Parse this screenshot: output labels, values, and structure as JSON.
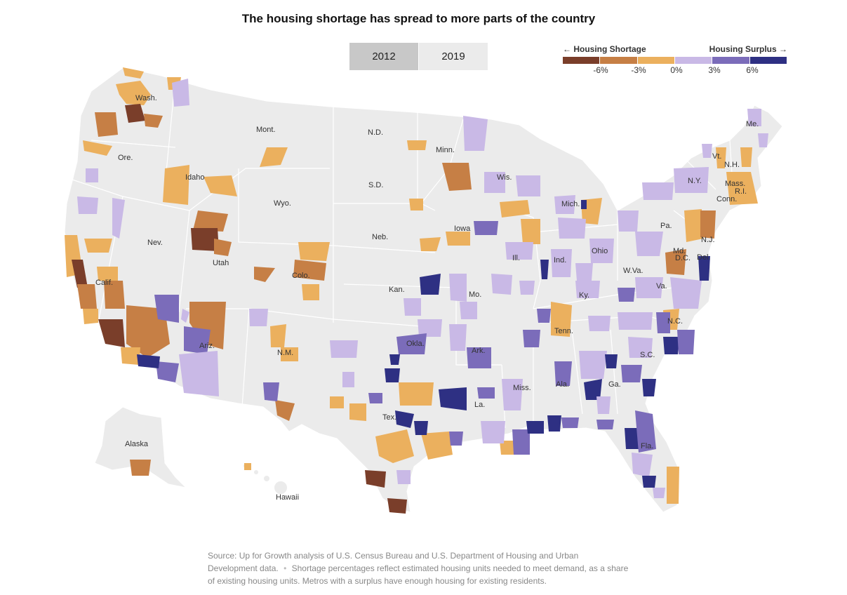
{
  "title": "The housing shortage has spread to more parts of the country",
  "toggle": {
    "options": [
      "2012",
      "2019"
    ],
    "selected": "2012"
  },
  "legend": {
    "left_label": "← Housing Shortage",
    "right_label": "Housing Surplus →",
    "ticks": [
      "-6%",
      "-3%",
      "0%",
      "3%",
      "6%"
    ],
    "colors": [
      "#7a3e2a",
      "#c67f45",
      "#ebb05e",
      "#c9b9e6",
      "#7b6cba",
      "#2e3083"
    ]
  },
  "map": {
    "base_color": "#ebebeb",
    "state_labels": [
      "Wash.",
      "Ore.",
      "Calif.",
      "Nev.",
      "Idaho",
      "Mont.",
      "Wyo.",
      "Utah",
      "Ariz.",
      "Colo.",
      "N.M.",
      "N.D.",
      "S.D.",
      "Neb.",
      "Kan.",
      "Okla.",
      "Tex.",
      "Minn.",
      "Iowa",
      "Mo.",
      "Ark.",
      "La.",
      "Wis.",
      "Ill.",
      "Mich.",
      "Ind.",
      "Ohio",
      "Ky.",
      "Tenn.",
      "Miss.",
      "Ala.",
      "Ga.",
      "Fla.",
      "S.C.",
      "N.C.",
      "Va.",
      "W.Va.",
      "Pa.",
      "N.Y.",
      "Vt.",
      "N.H.",
      "Me.",
      "Mass.",
      "R.I.",
      "Conn.",
      "N.J.",
      "Del.",
      "Md.",
      "D.C.",
      "Alaska",
      "Hawaii"
    ]
  },
  "source": {
    "text": "Source: Up for Growth analysis of U.S. Census Bureau and U.S. Department of Housing and Urban Development data.",
    "bullet": "•",
    "note": "Shortage percentages reflect estimated housing units needed to meet demand, as a share of existing housing units. Metros with a surplus have enough housing for existing residents."
  }
}
